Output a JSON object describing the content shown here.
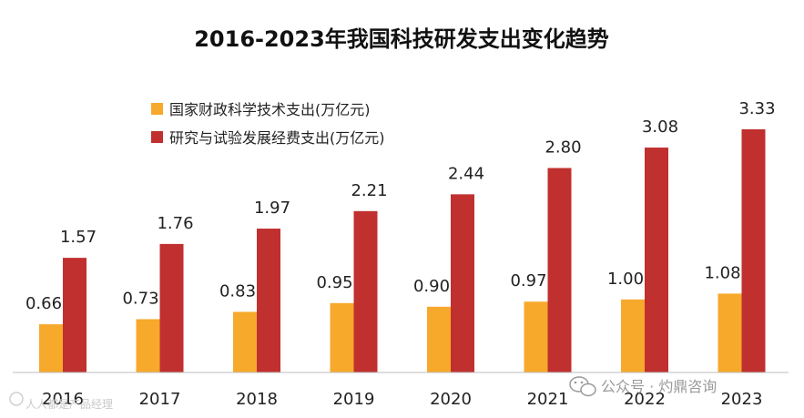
{
  "chart_data": {
    "type": "bar",
    "title": "2016-2023年我国科技研发支出变化趋势",
    "categories": [
      "2016",
      "2017",
      "2018",
      "2019",
      "2020",
      "2021",
      "2022",
      "2023"
    ],
    "series": [
      {
        "name": "国家财政科学技术支出(万亿元)",
        "color": "#F7A92B",
        "values": [
          0.66,
          0.73,
          0.83,
          0.95,
          0.9,
          0.97,
          1.0,
          1.08
        ],
        "labels": [
          "0.66",
          "0.73",
          "0.83",
          "0.95",
          "0.90",
          "0.97",
          "1.00",
          "1.08"
        ]
      },
      {
        "name": "研究与试验发展经费支出(万亿元)",
        "color": "#C0302E",
        "values": [
          1.57,
          1.76,
          1.97,
          2.21,
          2.44,
          2.8,
          3.08,
          3.33
        ],
        "labels": [
          "1.57",
          "1.76",
          "1.97",
          "2.21",
          "2.44",
          "2.80",
          "3.08",
          "3.33"
        ]
      }
    ],
    "xlabel": "",
    "ylabel": "",
    "ylim": [
      0,
      3.33
    ],
    "legend_position": "top-left",
    "grid": false
  },
  "watermarks": {
    "bottom_right": "公众号 · 灼鼎咨询",
    "bottom_left": "人人都是产品经理"
  },
  "icons": {
    "bottom_right": "wechat-icon",
    "bottom_left": "logo-icon"
  }
}
